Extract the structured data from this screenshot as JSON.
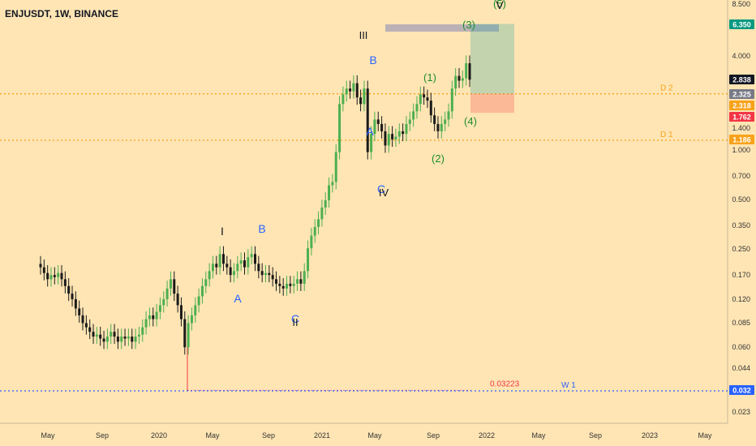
{
  "header": {
    "symbol": "ENJUSDT, 1W, BINANCE"
  },
  "chart_data": {
    "type": "candlestick",
    "scale": "log",
    "y_ticks": [
      "8.500",
      "4.000",
      "1.400",
      "1.000",
      "0.700",
      "0.500",
      "0.350",
      "0.250",
      "0.170",
      "0.120",
      "0.085",
      "0.060",
      "0.044",
      "0.023"
    ],
    "x_ticks": [
      "May",
      "Sep",
      "2020",
      "May",
      "Sep",
      "2021",
      "May",
      "Sep",
      "2022",
      "May",
      "Sep",
      "2023",
      "May"
    ],
    "price_badges": [
      {
        "label": "6.350",
        "color": "#089981"
      },
      {
        "label": "2.838",
        "color": "#131722"
      },
      {
        "label": "2.325",
        "color": "#787b86"
      },
      {
        "label": "2.318",
        "color": "#f7a21b"
      },
      {
        "label": "1.762",
        "color": "#f23645"
      },
      {
        "label": "1.186",
        "color": "#f7a21b"
      },
      {
        "label": "0.032",
        "color": "#2962ff"
      }
    ],
    "horizontal_lines": [
      {
        "label": "D 2",
        "value": 2.318,
        "color": "#f7a21b"
      },
      {
        "label": "D 1",
        "value": 1.186,
        "color": "#f7a21b"
      },
      {
        "label": "W 1",
        "value": 0.032,
        "color": "#2962ff"
      }
    ],
    "price_annotation": "0.03223",
    "wave_labels": [
      {
        "text": "III",
        "color": "#131722"
      },
      {
        "text": "B",
        "color": "#2962ff"
      },
      {
        "text": "A",
        "color": "#2962ff"
      },
      {
        "text": "C",
        "color": "#2962ff"
      },
      {
        "text": "IV",
        "color": "#131722"
      },
      {
        "text": "(1)",
        "color": "#1e8c2f"
      },
      {
        "text": "(2)",
        "color": "#1e8c2f"
      },
      {
        "text": "(3)",
        "color": "#1e8c2f"
      },
      {
        "text": "(4)",
        "color": "#1e8c2f"
      },
      {
        "text": "(5)",
        "color": "#1e8c2f"
      },
      {
        "text": "V",
        "color": "#131722"
      },
      {
        "text": "I",
        "color": "#131722"
      },
      {
        "text": "B",
        "color": "#2962ff"
      },
      {
        "text": "A",
        "color": "#2962ff"
      },
      {
        "text": "C",
        "color": "#2962ff"
      },
      {
        "text": "II",
        "color": "#131722"
      }
    ],
    "candles_close": [
      0.19,
      0.175,
      0.16,
      0.17,
      0.165,
      0.175,
      0.16,
      0.145,
      0.13,
      0.12,
      0.105,
      0.095,
      0.085,
      0.08,
      0.075,
      0.07,
      0.072,
      0.068,
      0.065,
      0.07,
      0.075,
      0.07,
      0.065,
      0.07,
      0.068,
      0.07,
      0.065,
      0.07,
      0.072,
      0.08,
      0.09,
      0.095,
      0.09,
      0.1,
      0.11,
      0.12,
      0.14,
      0.16,
      0.13,
      0.11,
      0.09,
      0.06,
      0.085,
      0.095,
      0.11,
      0.125,
      0.145,
      0.16,
      0.18,
      0.2,
      0.19,
      0.23,
      0.2,
      0.19,
      0.17,
      0.18,
      0.2,
      0.21,
      0.19,
      0.22,
      0.23,
      0.2,
      0.18,
      0.17,
      0.175,
      0.17,
      0.16,
      0.15,
      0.145,
      0.14,
      0.15,
      0.145,
      0.15,
      0.16,
      0.15,
      0.18,
      0.25,
      0.3,
      0.34,
      0.38,
      0.45,
      0.5,
      0.62,
      0.65,
      1.0,
      2.0,
      2.3,
      2.5,
      2.4,
      2.7,
      2.2,
      2.0,
      2.5,
      1.0,
      1.3,
      1.6,
      1.5,
      1.35,
      1.1,
      1.3,
      1.2,
      1.25,
      1.35,
      1.3,
      1.5,
      1.6,
      1.8,
      2.0,
      2.3,
      2.2,
      2.1,
      1.7,
      1.5,
      1.35,
      1.5,
      1.6,
      1.8,
      2.5,
      3.0,
      2.8,
      2.9,
      3.6,
      2.84
    ],
    "risk_reward": {
      "target": 6.35,
      "entry": 2.325,
      "stop": 1.762
    }
  }
}
